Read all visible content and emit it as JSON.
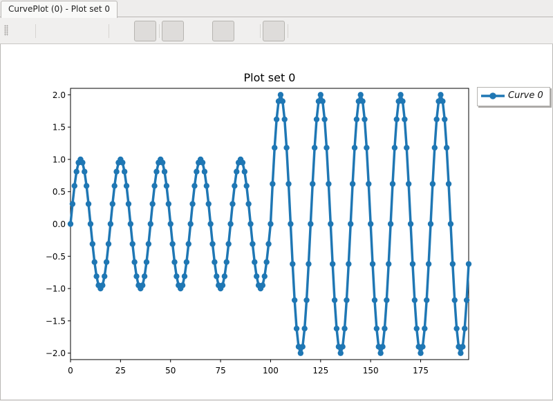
{
  "tabs": [
    {
      "label": "CurvePlot (0) - Plot set 0",
      "active": true
    }
  ],
  "toolbar": {
    "buttons": [
      {
        "name": "tool-1"
      },
      {
        "name": "tool-2"
      },
      {
        "name": "tool-3"
      },
      {
        "name": "tool-4"
      }
    ]
  },
  "chart_data": {
    "type": "line",
    "title": "Plot set 0",
    "xlabel": "",
    "ylabel": "",
    "xlim": [
      0,
      199
    ],
    "ylim": [
      -2.1,
      2.1
    ],
    "xticks": [
      "0",
      "25",
      "50",
      "75",
      "100",
      "125",
      "150",
      "175"
    ],
    "yticks": [
      "2.0",
      "1.5",
      "1.0",
      "0.5",
      "0.0",
      "−0.5",
      "−1.0",
      "−1.5",
      "−2.0"
    ],
    "legend_position": "outside-top-right",
    "grid": false,
    "series": [
      {
        "name": "Curve 0",
        "color": "#1f77b4",
        "marker": "circle",
        "x": [
          0,
          1,
          2,
          3,
          4,
          5,
          6,
          7,
          8,
          9,
          10,
          11,
          12,
          13,
          14,
          15,
          16,
          17,
          18,
          19,
          20,
          21,
          22,
          23,
          24,
          25,
          26,
          27,
          28,
          29,
          30,
          31,
          32,
          33,
          34,
          35,
          36,
          37,
          38,
          39,
          40,
          41,
          42,
          43,
          44,
          45,
          46,
          47,
          48,
          49,
          50,
          51,
          52,
          53,
          54,
          55,
          56,
          57,
          58,
          59,
          60,
          61,
          62,
          63,
          64,
          65,
          66,
          67,
          68,
          69,
          70,
          71,
          72,
          73,
          74,
          75,
          76,
          77,
          78,
          79,
          80,
          81,
          82,
          83,
          84,
          85,
          86,
          87,
          88,
          89,
          90,
          91,
          92,
          93,
          94,
          95,
          96,
          97,
          98,
          99,
          100,
          101,
          102,
          103,
          104,
          105,
          106,
          107,
          108,
          109,
          110,
          111,
          112,
          113,
          114,
          115,
          116,
          117,
          118,
          119,
          120,
          121,
          122,
          123,
          124,
          125,
          126,
          127,
          128,
          129,
          130,
          131,
          132,
          133,
          134,
          135,
          136,
          137,
          138,
          139,
          140,
          141,
          142,
          143,
          144,
          145,
          146,
          147,
          148,
          149,
          150,
          151,
          152,
          153,
          154,
          155,
          156,
          157,
          158,
          159,
          160,
          161,
          162,
          163,
          164,
          165,
          166,
          167,
          168,
          169,
          170,
          171,
          172,
          173,
          174,
          175,
          176,
          177,
          178,
          179,
          180,
          181,
          182,
          183,
          184,
          185,
          186,
          187,
          188,
          189,
          190,
          191,
          192,
          193,
          194,
          195,
          196,
          197,
          198,
          199
        ],
        "values": [
          0.0,
          0.31,
          0.59,
          0.81,
          0.95,
          1.0,
          0.95,
          0.81,
          0.59,
          0.31,
          0.0,
          -0.31,
          -0.59,
          -0.81,
          -0.95,
          -1.0,
          -0.95,
          -0.81,
          -0.59,
          -0.31,
          0.0,
          0.31,
          0.59,
          0.81,
          0.95,
          1.0,
          0.95,
          0.81,
          0.59,
          0.31,
          0.0,
          -0.31,
          -0.59,
          -0.81,
          -0.95,
          -1.0,
          -0.95,
          -0.81,
          -0.59,
          -0.31,
          0.0,
          0.31,
          0.59,
          0.81,
          0.95,
          1.0,
          0.95,
          0.81,
          0.59,
          0.31,
          0.0,
          -0.31,
          -0.59,
          -0.81,
          -0.95,
          -1.0,
          -0.95,
          -0.81,
          -0.59,
          -0.31,
          0.0,
          0.31,
          0.59,
          0.81,
          0.95,
          1.0,
          0.95,
          0.81,
          0.59,
          0.31,
          0.0,
          -0.31,
          -0.59,
          -0.81,
          -0.95,
          -1.0,
          -0.95,
          -0.81,
          -0.59,
          -0.31,
          0.0,
          0.31,
          0.59,
          0.81,
          0.95,
          1.0,
          0.95,
          0.81,
          0.59,
          0.31,
          0.0,
          -0.31,
          -0.59,
          -0.81,
          -0.95,
          -1.0,
          -0.95,
          -0.81,
          -0.59,
          -0.31,
          0.0,
          0.62,
          1.18,
          1.62,
          1.9,
          2.0,
          1.9,
          1.62,
          1.18,
          0.62,
          0.0,
          -0.62,
          -1.18,
          -1.62,
          -1.9,
          -2.0,
          -1.9,
          -1.62,
          -1.18,
          -0.62,
          0.0,
          0.62,
          1.18,
          1.62,
          1.9,
          2.0,
          1.9,
          1.62,
          1.18,
          0.62,
          0.0,
          -0.62,
          -1.18,
          -1.62,
          -1.9,
          -2.0,
          -1.9,
          -1.62,
          -1.18,
          -0.62,
          0.0,
          0.62,
          1.18,
          1.62,
          1.9,
          2.0,
          1.9,
          1.62,
          1.18,
          0.62,
          0.0,
          -0.62,
          -1.18,
          -1.62,
          -1.9,
          -2.0,
          -1.9,
          -1.62,
          -1.18,
          -0.62,
          0.0,
          0.62,
          1.18,
          1.62,
          1.9,
          2.0,
          1.9,
          1.62,
          1.18,
          0.62,
          0.0,
          -0.62,
          -1.18,
          -1.62,
          -1.9,
          -2.0,
          -1.9,
          -1.62,
          -1.18,
          -0.62,
          0.0,
          0.62,
          1.18,
          1.62,
          1.9,
          2.0,
          1.9,
          1.62,
          1.18,
          0.62,
          0.0,
          -0.62,
          -1.18,
          -1.62,
          -1.9,
          -2.0,
          -1.9,
          -1.62,
          -1.18,
          -0.62
        ]
      }
    ]
  }
}
